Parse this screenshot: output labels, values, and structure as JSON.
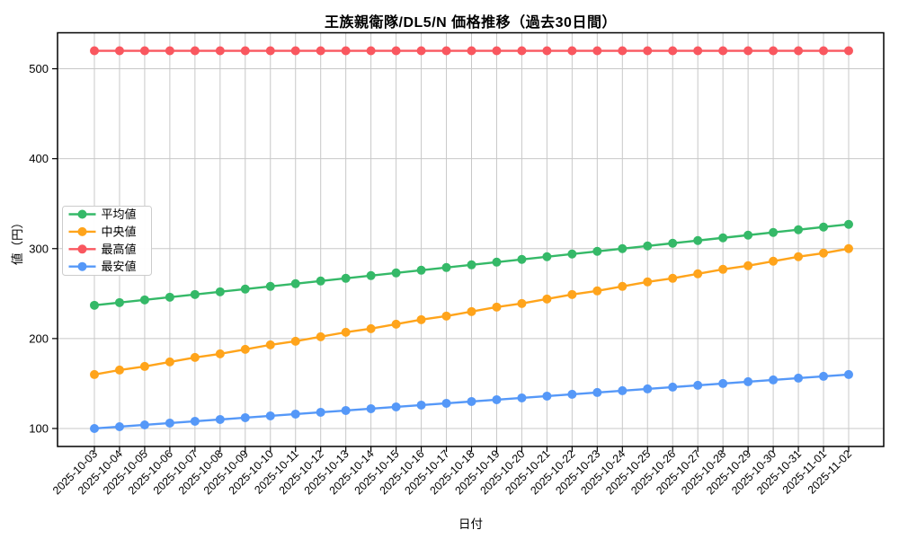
{
  "chart_data": {
    "type": "line",
    "title": "王族親衛隊/DL5/N 価格推移（過去30日間）",
    "xlabel": "日付",
    "ylabel": "値（円）",
    "grid": true,
    "legend_position": "center-left",
    "marker": "circle",
    "yticks": [
      100,
      200,
      300,
      400,
      500
    ],
    "ylim": [
      80,
      540
    ],
    "x": [
      "2025-10-03",
      "2025-10-04",
      "2025-10-05",
      "2025-10-06",
      "2025-10-07",
      "2025-10-08",
      "2025-10-09",
      "2025-10-10",
      "2025-10-11",
      "2025-10-12",
      "2025-10-13",
      "2025-10-14",
      "2025-10-15",
      "2025-10-16",
      "2025-10-17",
      "2025-10-18",
      "2025-10-19",
      "2025-10-20",
      "2025-10-21",
      "2025-10-22",
      "2025-10-23",
      "2025-10-24",
      "2025-10-25",
      "2025-10-26",
      "2025-10-27",
      "2025-10-28",
      "2025-10-29",
      "2025-10-30",
      "2025-10-31",
      "2025-11-01",
      "2025-11-02"
    ],
    "series": [
      {
        "key": "average",
        "name": "平均値",
        "color": "#35b968",
        "values": [
          237,
          240,
          243,
          246,
          249,
          252,
          255,
          258,
          261,
          264,
          267,
          270,
          273,
          276,
          279,
          282,
          285,
          288,
          291,
          294,
          297,
          300,
          303,
          306,
          309,
          312,
          315,
          318,
          321,
          324,
          327
        ]
      },
      {
        "key": "median",
        "name": "中央値",
        "color": "#ffa41b",
        "values": [
          160,
          165,
          169,
          174,
          179,
          183,
          188,
          193,
          197,
          202,
          207,
          211,
          216,
          221,
          225,
          230,
          235,
          239,
          244,
          249,
          253,
          258,
          263,
          267,
          272,
          277,
          281,
          286,
          291,
          295,
          300
        ]
      },
      {
        "key": "max",
        "name": "最高値",
        "color": "#f9575f",
        "values": [
          520,
          520,
          520,
          520,
          520,
          520,
          520,
          520,
          520,
          520,
          520,
          520,
          520,
          520,
          520,
          520,
          520,
          520,
          520,
          520,
          520,
          520,
          520,
          520,
          520,
          520,
          520,
          520,
          520,
          520,
          520
        ]
      },
      {
        "key": "min",
        "name": "最安値",
        "color": "#5598f8",
        "values": [
          100,
          102,
          104,
          106,
          108,
          110,
          112,
          114,
          116,
          118,
          120,
          122,
          124,
          126,
          128,
          130,
          132,
          134,
          136,
          138,
          140,
          142,
          144,
          146,
          148,
          150,
          152,
          154,
          156,
          158,
          160
        ]
      }
    ]
  }
}
